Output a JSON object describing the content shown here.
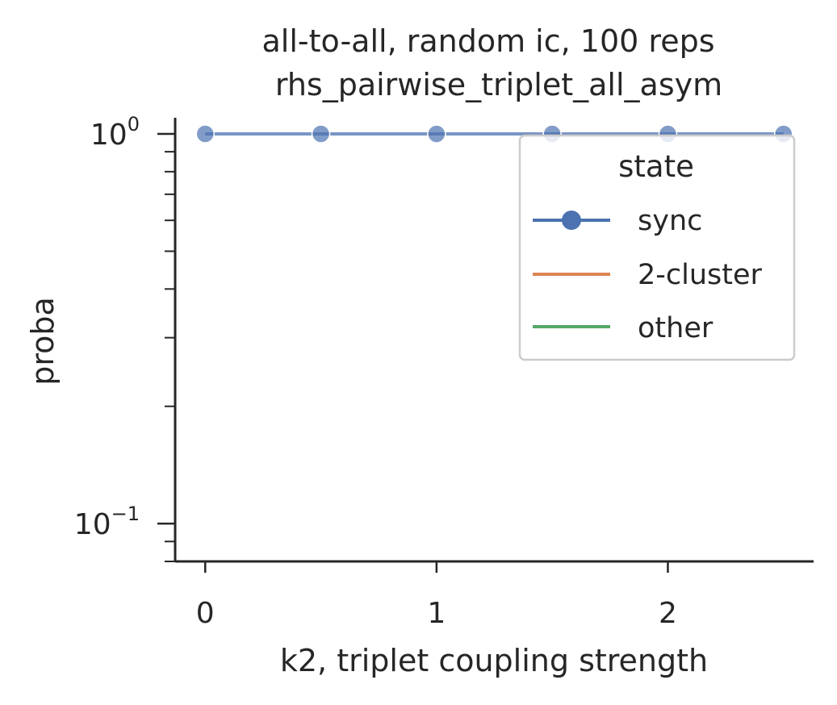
{
  "chart_data": {
    "type": "line",
    "title": "all-to-all, random ic, 100 reps",
    "subtitle": "rhs_pairwise_triplet_all_asym",
    "xlabel": "k2, triplet coupling strength",
    "ylabel": "proba",
    "yscale": "log",
    "xlim": [
      -0.13,
      2.63
    ],
    "ylim": [
      0.08,
      1.1
    ],
    "xticks": [
      0,
      1,
      2
    ],
    "xtick_labels": [
      "0",
      "1",
      "2"
    ],
    "yticks": [
      {
        "value": 1.0,
        "base": "10",
        "exp": "0"
      },
      {
        "value": 0.1,
        "base": "10",
        "exp": "−1"
      }
    ],
    "series": [
      {
        "name": "sync",
        "color": "#4c72b0",
        "marker": "circle",
        "x": [
          0,
          0.5,
          1,
          1.5,
          2,
          2.5
        ],
        "y": [
          1,
          1,
          1,
          1,
          1,
          1
        ]
      },
      {
        "name": "2-cluster",
        "color": "#dd8452",
        "x": [],
        "y": []
      },
      {
        "name": "other",
        "color": "#55a868",
        "x": [],
        "y": []
      }
    ],
    "legend": {
      "title": "state",
      "position": "top-right"
    },
    "grid": false
  }
}
